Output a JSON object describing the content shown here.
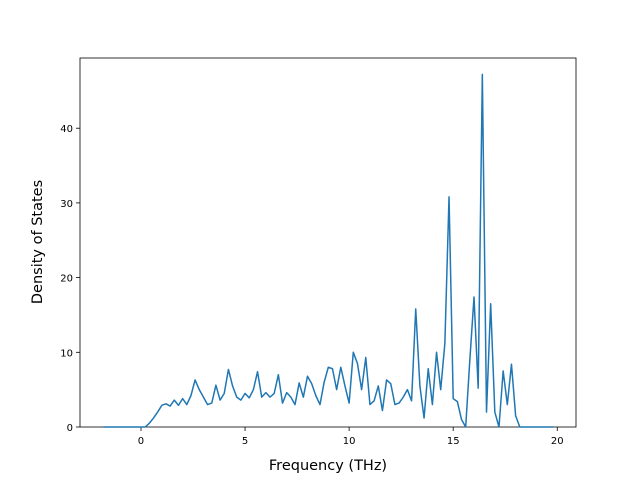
{
  "chart_data": {
    "type": "line",
    "xlabel": "Frequency (THz)",
    "ylabel": "Density of States",
    "x": [
      -1.8,
      -1.6,
      -1.4,
      -1.2,
      -1.0,
      -0.8,
      -0.6,
      -0.4,
      -0.2,
      0,
      0.2,
      0.4,
      0.6,
      0.8,
      1.0,
      1.2,
      1.4,
      1.6,
      1.8,
      2.0,
      2.2,
      2.4,
      2.6,
      2.8,
      3.0,
      3.2,
      3.4,
      3.6,
      3.8,
      4.0,
      4.2,
      4.4,
      4.6,
      4.8,
      5.0,
      5.2,
      5.4,
      5.6,
      5.8,
      6.0,
      6.2,
      6.4,
      6.6,
      6.8,
      7.0,
      7.2,
      7.4,
      7.6,
      7.8,
      8.0,
      8.2,
      8.4,
      8.6,
      8.8,
      9.0,
      9.2,
      9.4,
      9.6,
      9.8,
      10.0,
      10.2,
      10.4,
      10.6,
      10.8,
      11.0,
      11.2,
      11.4,
      11.6,
      11.8,
      12.0,
      12.2,
      12.4,
      12.6,
      12.8,
      13.0,
      13.2,
      13.4,
      13.6,
      13.8,
      14.0,
      14.2,
      14.4,
      14.6,
      14.8,
      15.0,
      15.2,
      15.4,
      15.6,
      15.8,
      16.0,
      16.2,
      16.4,
      16.6,
      16.8,
      17.0,
      17.2,
      17.4,
      17.6,
      17.8,
      18.0,
      18.2,
      18.4,
      18.6,
      18.8,
      19.0,
      19.2,
      19.4,
      19.6,
      19.8
    ],
    "series": [
      {
        "color": "#1f77b4",
        "values": [
          0,
          0,
          0,
          0,
          0,
          0,
          0,
          0,
          0,
          0,
          0,
          0.5,
          1.2,
          2.0,
          2.9,
          3.1,
          2.8,
          3.6,
          2.9,
          3.8,
          3.0,
          4.2,
          6.3,
          5.0,
          4.0,
          3.0,
          3.2,
          5.6,
          3.6,
          4.5,
          7.7,
          5.5,
          4.0,
          3.6,
          4.5,
          3.9,
          5.0,
          7.4,
          4.0,
          4.6,
          4.0,
          4.5,
          7.0,
          3.2,
          4.6,
          4.0,
          3.0,
          5.9,
          4.0,
          6.8,
          5.8,
          4.2,
          3.0,
          6.0,
          8.0,
          7.8,
          5.0,
          8.0,
          5.5,
          3.2,
          10.0,
          8.5,
          5.0,
          9.3,
          3.0,
          3.5,
          5.5,
          2.2,
          6.3,
          5.8,
          3.0,
          3.2,
          4.0,
          5.0,
          3.5,
          15.8,
          5.5,
          1.2,
          7.8,
          3.0,
          10.0,
          5.0,
          11.2,
          30.8,
          3.8,
          3.4,
          1.0,
          0,
          9.0,
          17.4,
          5.2,
          47.2,
          2.0,
          16.5,
          2.0,
          0,
          7.5,
          3.0,
          8.4,
          1.5,
          0,
          0,
          0,
          0,
          0,
          0,
          0,
          0,
          0
        ]
      }
    ],
    "xlim": [
      -2.93,
      20.9
    ],
    "ylim": [
      0,
      49.4
    ],
    "xticks": [
      0,
      5,
      10,
      15,
      20
    ],
    "yticks": [
      0,
      10,
      20,
      30,
      40
    ]
  }
}
